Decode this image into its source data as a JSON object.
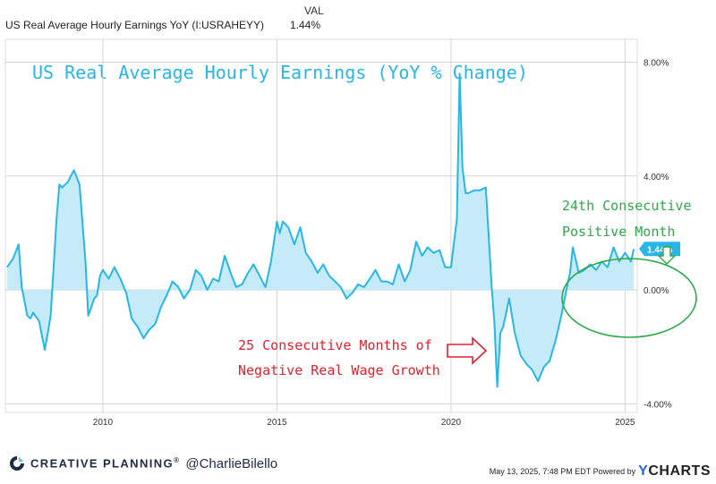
{
  "legend": {
    "val_header": "VAL",
    "series_name": "US Real Average Hourly Earnings YoY (I:USRAHEYY)",
    "value": "1.44%"
  },
  "chart_data": {
    "type": "area",
    "title": "US Real Average Hourly Earnings (YoY % Change)",
    "xlabel": "",
    "ylabel": "",
    "x_ticks": [
      "2010",
      "2015",
      "2020",
      "2025"
    ],
    "y_ticks": [
      "8.00%",
      "4.00%",
      "0.00%",
      "-4.00%"
    ],
    "xlim": [
      2007.2,
      2025.35
    ],
    "ylim": [
      -4.3,
      8.8
    ],
    "grid": true,
    "legend_position": "top-left",
    "last_value_label": "1.44%",
    "series": [
      {
        "x": [
          2007.25,
          2007.42,
          2007.58,
          2007.67,
          2007.83,
          2007.92,
          2008.0,
          2008.17,
          2008.33,
          2008.42,
          2008.5,
          2008.67,
          2008.75,
          2008.83,
          2008.92,
          2009.0,
          2009.08,
          2009.17,
          2009.33,
          2009.5,
          2009.58,
          2009.67,
          2009.75,
          2009.83,
          2009.92,
          2010.0,
          2010.17,
          2010.33,
          2010.5,
          2010.67,
          2010.83,
          2011.0,
          2011.17,
          2011.33,
          2011.5,
          2011.67,
          2011.83,
          2012.0,
          2012.17,
          2012.33,
          2012.5,
          2012.67,
          2012.83,
          2013.0,
          2013.17,
          2013.33,
          2013.5,
          2013.67,
          2013.83,
          2014.0,
          2014.17,
          2014.33,
          2014.5,
          2014.67,
          2014.83,
          2015.0,
          2015.08,
          2015.17,
          2015.33,
          2015.5,
          2015.67,
          2015.83,
          2016.0,
          2016.17,
          2016.33,
          2016.5,
          2016.67,
          2016.83,
          2017.0,
          2017.17,
          2017.33,
          2017.5,
          2017.67,
          2017.83,
          2018.0,
          2018.17,
          2018.33,
          2018.5,
          2018.67,
          2018.83,
          2019.0,
          2019.17,
          2019.33,
          2019.5,
          2019.67,
          2019.83,
          2020.0,
          2020.17,
          2020.25,
          2020.33,
          2020.42,
          2020.5,
          2020.67,
          2020.83,
          2021.0,
          2021.17,
          2021.25,
          2021.33,
          2021.42,
          2021.5,
          2021.67,
          2021.83,
          2022.0,
          2022.17,
          2022.33,
          2022.5,
          2022.67,
          2022.83,
          2023.0,
          2023.17,
          2023.33,
          2023.42,
          2023.5,
          2023.67,
          2023.83,
          2024.0,
          2024.17,
          2024.33,
          2024.5,
          2024.67,
          2024.83,
          2025.0,
          2025.17,
          2025.25
        ],
        "y": [
          0.8,
          1.1,
          1.6,
          0.1,
          -0.9,
          -1.0,
          -0.8,
          -1.1,
          -2.1,
          -1.5,
          -0.9,
          2.5,
          3.7,
          3.6,
          3.7,
          3.8,
          4.0,
          4.2,
          3.7,
          1.0,
          -0.9,
          -0.6,
          -0.3,
          -0.2,
          0.5,
          0.7,
          0.4,
          0.8,
          0.4,
          -0.1,
          -1.0,
          -1.3,
          -1.7,
          -1.4,
          -1.2,
          -0.6,
          -0.2,
          0.3,
          0.1,
          -0.3,
          0.0,
          0.7,
          0.5,
          0.0,
          0.4,
          0.3,
          1.2,
          0.6,
          0.1,
          0.2,
          0.6,
          0.9,
          0.5,
          0.1,
          1.0,
          2.4,
          2.0,
          2.4,
          2.2,
          1.6,
          2.2,
          1.3,
          1.0,
          0.6,
          0.9,
          0.5,
          0.3,
          0.1,
          -0.3,
          -0.1,
          0.2,
          0.1,
          0.4,
          0.7,
          0.3,
          0.3,
          0.2,
          0.9,
          0.3,
          0.7,
          1.7,
          1.2,
          1.5,
          1.3,
          1.4,
          0.8,
          0.8,
          2.5,
          7.6,
          4.3,
          3.4,
          3.4,
          3.5,
          3.5,
          3.6,
          0.1,
          -1.2,
          -3.4,
          -1.5,
          -1.3,
          -0.3,
          -1.5,
          -2.3,
          -2.6,
          -2.8,
          -3.2,
          -2.7,
          -2.5,
          -1.8,
          -0.9,
          0.1,
          0.6,
          1.5,
          0.6,
          0.7,
          0.9,
          0.7,
          1.0,
          0.8,
          1.5,
          1.0,
          1.3,
          1.0,
          1.44
        ]
      }
    ],
    "annotations": {
      "positive_line1": "24th Consecutive",
      "positive_line2": "Positive Month",
      "negative_line1": "25 Consecutive Months of",
      "negative_line2": "Negative Real Wage Growth"
    },
    "colors": {
      "line": "#29b6e6",
      "fill": "#c4ebf7",
      "title": "#29b6e6",
      "positive_annotation": "#2ea84a",
      "negative_annotation": "#e0202a",
      "grid": "#d4d4d4",
      "axis_text": "#333333"
    }
  },
  "footer": {
    "brand_name": "CREATIVE PLANNING",
    "brand_mark": "®",
    "handle": "@CharlieBilello",
    "timestamp": "May 13, 2025, 7:48 PM EDT Powered by",
    "logo_y": "Y",
    "logo_rest": "CHARTS"
  }
}
